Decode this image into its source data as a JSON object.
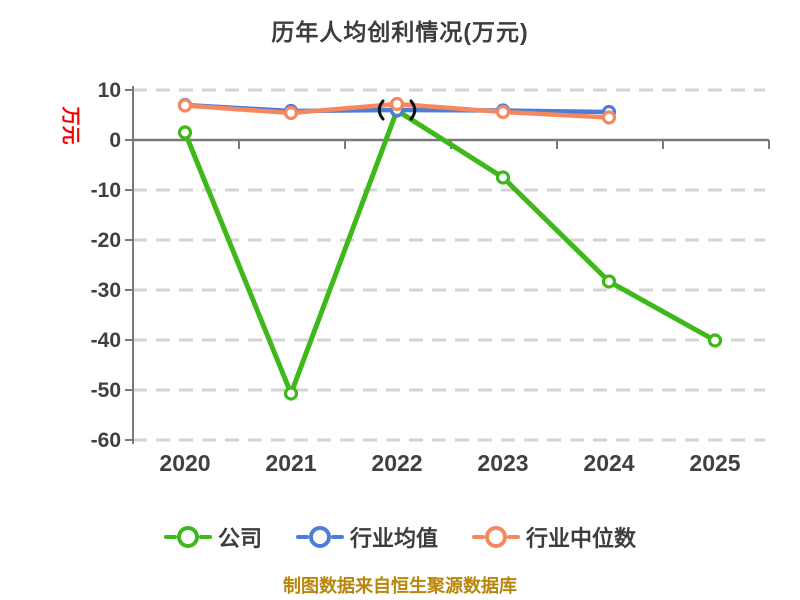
{
  "chart": {
    "title": "历年人均创利情况(万元)",
    "y_axis_label": "万元",
    "footer": "制图数据来自恒生聚源数据库"
  },
  "colors": {
    "title_text": "#3d3d3d",
    "ylabel_text": "#f40000",
    "footer_text": "#b8860b",
    "axis": "#7a7a7a",
    "grid": "#d4d4d4",
    "tick_label": "#404040",
    "marker_fill": "#ffffff",
    "annotation": "#111111"
  },
  "chart_data": {
    "type": "line",
    "title": "历年人均创利情况(万元)",
    "xlabel": "",
    "ylabel": "万元",
    "categories": [
      "2020",
      "2021",
      "2022",
      "2023",
      "2024",
      "2025"
    ],
    "series": [
      {
        "name": "公司",
        "color": "#3eb81a",
        "values": [
          1.5,
          -50.7,
          5.9,
          -7.5,
          -28.3,
          -40.1
        ]
      },
      {
        "name": "行业均值",
        "color": "#4b7dd9",
        "values": [
          7.0,
          5.8,
          6.0,
          5.9,
          5.6,
          null
        ]
      },
      {
        "name": "行业中位数",
        "color": "#f5885e",
        "values": [
          6.9,
          5.4,
          7.2,
          5.6,
          4.5,
          null
        ]
      }
    ],
    "ylim": [
      -60,
      10
    ],
    "yticks": [
      10,
      0,
      -10,
      -20,
      -30,
      -40,
      -50,
      -60
    ],
    "grid": "horizontal-dashed",
    "x_axis_at_zero": true,
    "legend_position": "bottom",
    "annotations": [
      {
        "category": "2022",
        "mark": "parentheses",
        "color": "#111111"
      }
    ]
  }
}
